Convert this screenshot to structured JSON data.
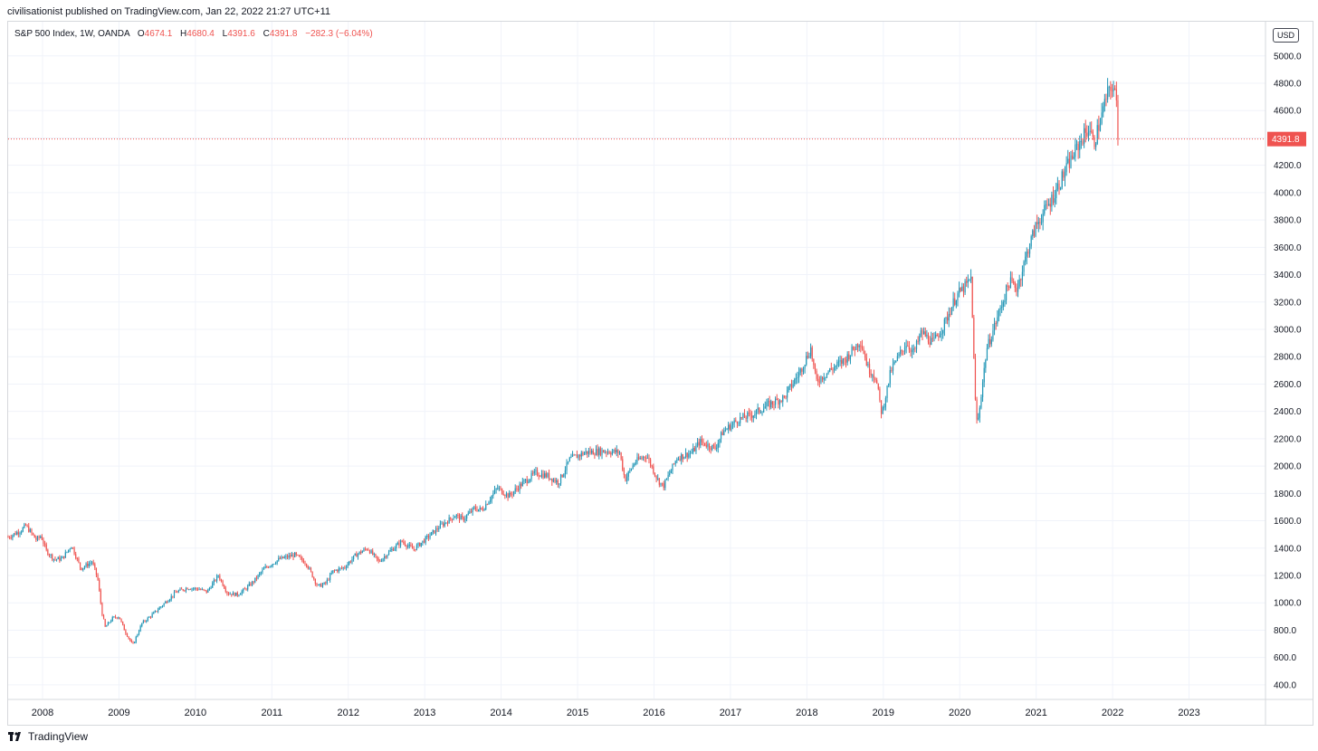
{
  "header": {
    "published": "civilisationist published on TradingView.com, Jan 22, 2022 21:27 UTC+11"
  },
  "legend": {
    "symbol": "S&P 500 Index, 1W, OANDA",
    "o_label": "O",
    "o_value": "4674.1",
    "h_label": "H",
    "h_value": "4680.4",
    "l_label": "L",
    "l_value": "4391.6",
    "c_label": "C",
    "c_value": "4391.8",
    "change": "−282.3 (−6.04%)"
  },
  "currency": "USD",
  "last_price_label": "4391.8",
  "footer": {
    "brand": "TradingView"
  },
  "colors": {
    "up": "#2196b6",
    "down": "#ef5350",
    "grid": "#f0f3fa",
    "axis_text": "#131722",
    "price_line": "#ef5350"
  },
  "chart_data": {
    "type": "candlestick",
    "interval": "1W",
    "title": "S&P 500 Index, 1W, OANDA",
    "ylabel": "",
    "xlabel": "",
    "ylim": [
      300,
      5250
    ],
    "xlim": [
      2007.55,
      2024.0
    ],
    "grid": true,
    "y_ticks": [
      "400.0",
      "600.0",
      "800.0",
      "1000.0",
      "1200.0",
      "1400.0",
      "1600.0",
      "1800.0",
      "2000.0",
      "2200.0",
      "2400.0",
      "2600.0",
      "2800.0",
      "3000.0",
      "3200.0",
      "3400.0",
      "3600.0",
      "3800.0",
      "4000.0",
      "4200.0",
      "4400.0",
      "4600.0",
      "4800.0",
      "5000.0"
    ],
    "x_ticks": [
      "2008",
      "2009",
      "2010",
      "2011",
      "2012",
      "2013",
      "2014",
      "2015",
      "2016",
      "2017",
      "2018",
      "2019",
      "2020",
      "2021",
      "2022",
      "2023"
    ],
    "last_price": 4391.8,
    "path": [
      [
        2007.55,
        1480
      ],
      [
        2007.72,
        1530
      ],
      [
        2007.78,
        1565
      ],
      [
        2007.92,
        1460
      ],
      [
        2007.98,
        1490
      ],
      [
        2008.05,
        1380
      ],
      [
        2008.15,
        1320
      ],
      [
        2008.25,
        1320
      ],
      [
        2008.38,
        1420
      ],
      [
        2008.5,
        1250
      ],
      [
        2008.65,
        1300
      ],
      [
        2008.72,
        1180
      ],
      [
        2008.78,
        920
      ],
      [
        2008.82,
        820
      ],
      [
        2008.92,
        890
      ],
      [
        2009.0,
        900
      ],
      [
        2009.08,
        790
      ],
      [
        2009.18,
        690
      ],
      [
        2009.3,
        850
      ],
      [
        2009.45,
        920
      ],
      [
        2009.6,
        1000
      ],
      [
        2009.75,
        1080
      ],
      [
        2009.9,
        1110
      ],
      [
        2010.05,
        1100
      ],
      [
        2010.15,
        1080
      ],
      [
        2010.3,
        1200
      ],
      [
        2010.42,
        1070
      ],
      [
        2010.55,
        1060
      ],
      [
        2010.65,
        1100
      ],
      [
        2010.75,
        1150
      ],
      [
        2010.9,
        1250
      ],
      [
        2011.1,
        1320
      ],
      [
        2011.3,
        1350
      ],
      [
        2011.45,
        1290
      ],
      [
        2011.6,
        1120
      ],
      [
        2011.7,
        1140
      ],
      [
        2011.8,
        1230
      ],
      [
        2011.95,
        1260
      ],
      [
        2012.1,
        1350
      ],
      [
        2012.25,
        1400
      ],
      [
        2012.4,
        1300
      ],
      [
        2012.55,
        1380
      ],
      [
        2012.7,
        1450
      ],
      [
        2012.85,
        1390
      ],
      [
        2013.0,
        1460
      ],
      [
        2013.2,
        1560
      ],
      [
        2013.4,
        1640
      ],
      [
        2013.5,
        1610
      ],
      [
        2013.65,
        1690
      ],
      [
        2013.75,
        1680
      ],
      [
        2013.95,
        1840
      ],
      [
        2014.1,
        1780
      ],
      [
        2014.25,
        1860
      ],
      [
        2014.45,
        1950
      ],
      [
        2014.6,
        1930
      ],
      [
        2014.75,
        1880
      ],
      [
        2014.9,
        2050
      ],
      [
        2015.1,
        2100
      ],
      [
        2015.35,
        2110
      ],
      [
        2015.55,
        2100
      ],
      [
        2015.62,
        1900
      ],
      [
        2015.75,
        2030
      ],
      [
        2015.9,
        2080
      ],
      [
        2016.05,
        1900
      ],
      [
        2016.12,
        1850
      ],
      [
        2016.3,
        2060
      ],
      [
        2016.5,
        2100
      ],
      [
        2016.6,
        2180
      ],
      [
        2016.8,
        2130
      ],
      [
        2016.9,
        2250
      ],
      [
        2017.1,
        2340
      ],
      [
        2017.3,
        2380
      ],
      [
        2017.5,
        2450
      ],
      [
        2017.7,
        2500
      ],
      [
        2017.9,
        2680
      ],
      [
        2018.05,
        2860
      ],
      [
        2018.12,
        2620
      ],
      [
        2018.3,
        2700
      ],
      [
        2018.5,
        2780
      ],
      [
        2018.7,
        2920
      ],
      [
        2018.8,
        2720
      ],
      [
        2018.9,
        2650
      ],
      [
        2018.98,
        2380
      ],
      [
        2019.1,
        2700
      ],
      [
        2019.3,
        2900
      ],
      [
        2019.4,
        2830
      ],
      [
        2019.5,
        2980
      ],
      [
        2019.65,
        2900
      ],
      [
        2019.8,
        3040
      ],
      [
        2019.95,
        3240
      ],
      [
        2020.1,
        3330
      ],
      [
        2020.15,
        3380
      ],
      [
        2020.2,
        2500
      ],
      [
        2020.23,
        2290
      ],
      [
        2020.35,
        2850
      ],
      [
        2020.5,
        3100
      ],
      [
        2020.65,
        3350
      ],
      [
        2020.75,
        3300
      ],
      [
        2020.9,
        3600
      ],
      [
        2021.0,
        3760
      ],
      [
        2021.2,
        3950
      ],
      [
        2021.4,
        4180
      ],
      [
        2021.6,
        4400
      ],
      [
        2021.7,
        4480
      ],
      [
        2021.75,
        4350
      ],
      [
        2021.85,
        4550
      ],
      [
        2021.92,
        4700
      ],
      [
        2022.0,
        4790
      ],
      [
        2022.05,
        4660
      ],
      [
        2022.08,
        4391.8
      ]
    ]
  }
}
